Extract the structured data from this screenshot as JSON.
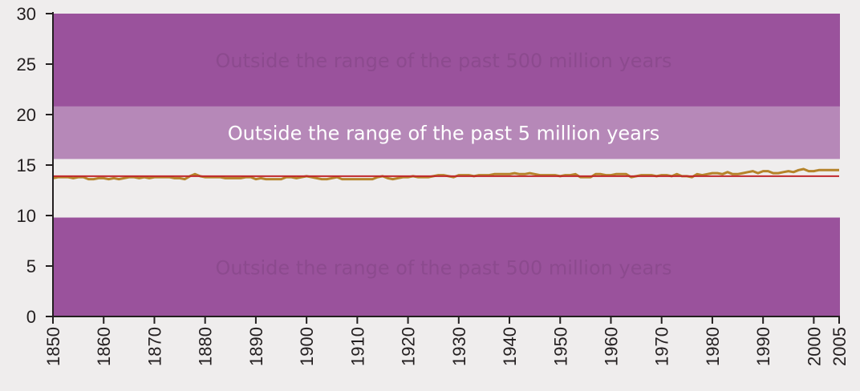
{
  "chart_data": {
    "type": "line",
    "title": "",
    "xlabel": "",
    "ylabel": "",
    "xlim": [
      1850,
      2005
    ],
    "ylim": [
      0,
      30
    ],
    "x_ticks": [
      "1850",
      "1860",
      "1870",
      "1880",
      "1890",
      "1900",
      "1910",
      "1920",
      "1930",
      "1940",
      "1950",
      "1960",
      "1970",
      "1980",
      "1990",
      "2000",
      "2005"
    ],
    "y_ticks": [
      "0",
      "5",
      "10",
      "15",
      "20",
      "25",
      "30"
    ],
    "grid": false,
    "legend": "none",
    "bands": [
      {
        "from": 20.8,
        "to": 30,
        "label": "Outside the range of the past 500 million years",
        "fill": "#9a529c",
        "text_color": "#8c4a8e"
      },
      {
        "from": 15.6,
        "to": 20.8,
        "label": "Outside the range of the past 5 million years",
        "fill": "#b688b8",
        "text_color": "#ffffff"
      },
      {
        "from": 0,
        "to": 9.8,
        "label": "Outside the range of the past 500 million years",
        "fill": "#9a529c",
        "text_color": "#8c4a8e"
      }
    ],
    "series": [
      {
        "color": "#c1272d",
        "x": [
          1850,
          2005
        ],
        "y": [
          13.9,
          13.9
        ]
      },
      {
        "color": "#b5832a",
        "x": [
          1850,
          1851,
          1852,
          1853,
          1854,
          1855,
          1856,
          1857,
          1858,
          1859,
          1860,
          1861,
          1862,
          1863,
          1864,
          1865,
          1866,
          1867,
          1868,
          1869,
          1870,
          1871,
          1872,
          1873,
          1874,
          1875,
          1876,
          1877,
          1878,
          1879,
          1880,
          1881,
          1882,
          1883,
          1884,
          1885,
          1886,
          1887,
          1888,
          1889,
          1890,
          1891,
          1892,
          1893,
          1894,
          1895,
          1896,
          1897,
          1898,
          1899,
          1900,
          1901,
          1902,
          1903,
          1904,
          1905,
          1906,
          1907,
          1908,
          1909,
          1910,
          1911,
          1912,
          1913,
          1914,
          1915,
          1916,
          1917,
          1918,
          1919,
          1920,
          1921,
          1922,
          1923,
          1924,
          1925,
          1926,
          1927,
          1928,
          1929,
          1930,
          1931,
          1932,
          1933,
          1934,
          1935,
          1936,
          1937,
          1938,
          1939,
          1940,
          1941,
          1942,
          1943,
          1944,
          1945,
          1946,
          1947,
          1948,
          1949,
          1950,
          1951,
          1952,
          1953,
          1954,
          1955,
          1956,
          1957,
          1958,
          1959,
          1960,
          1961,
          1962,
          1963,
          1964,
          1965,
          1966,
          1967,
          1968,
          1969,
          1970,
          1971,
          1972,
          1973,
          1974,
          1975,
          1976,
          1977,
          1978,
          1979,
          1980,
          1981,
          1982,
          1983,
          1984,
          1985,
          1986,
          1987,
          1988,
          1989,
          1990,
          1991,
          1992,
          1993,
          1994,
          1995,
          1996,
          1997,
          1998,
          1999,
          2000,
          2001,
          2002,
          2003,
          2004,
          2005
        ],
        "y": [
          13.7,
          13.8,
          13.8,
          13.8,
          13.7,
          13.8,
          13.8,
          13.6,
          13.6,
          13.7,
          13.7,
          13.6,
          13.7,
          13.6,
          13.7,
          13.8,
          13.8,
          13.7,
          13.8,
          13.7,
          13.8,
          13.8,
          13.8,
          13.8,
          13.7,
          13.7,
          13.6,
          13.9,
          14.1,
          13.9,
          13.8,
          13.8,
          13.8,
          13.8,
          13.7,
          13.7,
          13.7,
          13.7,
          13.8,
          13.8,
          13.6,
          13.7,
          13.6,
          13.6,
          13.6,
          13.6,
          13.8,
          13.8,
          13.7,
          13.8,
          13.9,
          13.8,
          13.7,
          13.6,
          13.6,
          13.7,
          13.8,
          13.6,
          13.6,
          13.6,
          13.6,
          13.6,
          13.6,
          13.6,
          13.8,
          13.9,
          13.7,
          13.6,
          13.7,
          13.8,
          13.8,
          13.9,
          13.8,
          13.8,
          13.8,
          13.9,
          14.0,
          14.0,
          13.9,
          13.8,
          14.0,
          14.0,
          14.0,
          13.9,
          14.0,
          14.0,
          14.0,
          14.1,
          14.1,
          14.1,
          14.1,
          14.2,
          14.1,
          14.1,
          14.2,
          14.1,
          14.0,
          14.0,
          14.0,
          14.0,
          13.9,
          14.0,
          14.0,
          14.1,
          13.8,
          13.8,
          13.8,
          14.1,
          14.1,
          14.0,
          14.0,
          14.1,
          14.1,
          14.1,
          13.8,
          13.9,
          14.0,
          14.0,
          14.0,
          13.9,
          14.0,
          14.0,
          13.9,
          14.1,
          13.9,
          13.9,
          13.8,
          14.1,
          14.0,
          14.1,
          14.2,
          14.2,
          14.1,
          14.3,
          14.1,
          14.1,
          14.2,
          14.3,
          14.4,
          14.2,
          14.4,
          14.4,
          14.2,
          14.2,
          14.3,
          14.4,
          14.3,
          14.5,
          14.6,
          14.4,
          14.4,
          14.5,
          14.5,
          14.5,
          14.5,
          14.5
        ]
      }
    ]
  }
}
